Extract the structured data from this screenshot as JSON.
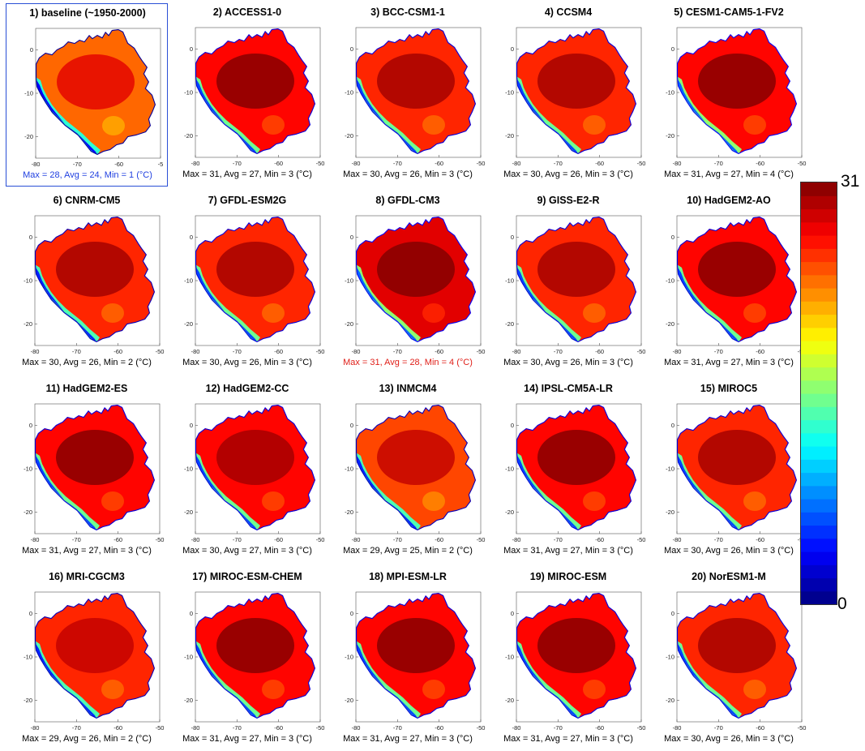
{
  "chart_data": {
    "type": "heatmap",
    "x_ticks": [
      "-80",
      "-70",
      "-60",
      "-50"
    ],
    "x_ticks_baseline_last": "-5",
    "y_ticks": [
      "0",
      "-10",
      "-20"
    ],
    "xlim": [
      -80,
      -50
    ],
    "ylim": [
      -25,
      5
    ],
    "colormap": "jet",
    "colorbar": {
      "min": 0,
      "max": 31,
      "min_label": "0",
      "max_label": "31"
    },
    "panels": [
      {
        "title": "1) baseline (~1950-2000)",
        "stats": "Max = 28, Avg = 24, Min = 1 (°C)",
        "max": 28,
        "avg": 24,
        "min": 1,
        "highlight": "blue",
        "stats_color": "#1f3fe0"
      },
      {
        "title": "2) ACCESS1-0",
        "stats": "Max = 31, Avg = 27, Min = 3 (°C)",
        "max": 31,
        "avg": 27,
        "min": 3
      },
      {
        "title": "3) BCC-CSM1-1",
        "stats": "Max = 30, Avg = 26, Min = 3 (°C)",
        "max": 30,
        "avg": 26,
        "min": 3
      },
      {
        "title": "4) CCSM4",
        "stats": "Max = 30, Avg = 26, Min = 3 (°C)",
        "max": 30,
        "avg": 26,
        "min": 3
      },
      {
        "title": "5) CESM1-CAM5-1-FV2",
        "stats": "Max = 31, Avg = 27, Min = 4 (°C)",
        "max": 31,
        "avg": 27,
        "min": 4
      },
      {
        "title": "6) CNRM-CM5",
        "stats": "Max = 30, Avg = 26, Min = 2 (°C)",
        "max": 30,
        "avg": 26,
        "min": 2
      },
      {
        "title": "7) GFDL-ESM2G",
        "stats": "Max = 30, Avg = 26, Min = 3 (°C)",
        "max": 30,
        "avg": 26,
        "min": 3
      },
      {
        "title": "8) GFDL-CM3",
        "stats": "Max = 31, Avg = 28, Min = 4 (°C)",
        "max": 31,
        "avg": 28,
        "min": 4,
        "stats_color": "#e0201a"
      },
      {
        "title": "9) GISS-E2-R",
        "stats": "Max = 30, Avg = 26, Min = 3 (°C)",
        "max": 30,
        "avg": 26,
        "min": 3
      },
      {
        "title": "10) HadGEM2-AO",
        "stats": "Max = 31, Avg = 27, Min = 3 (°C)",
        "max": 31,
        "avg": 27,
        "min": 3
      },
      {
        "title": "11) HadGEM2-ES",
        "stats": "Max = 31, Avg = 27, Min = 3 (°C)",
        "max": 31,
        "avg": 27,
        "min": 3
      },
      {
        "title": "12) HadGEM2-CC",
        "stats": "Max = 30, Avg = 27, Min = 3 (°C)",
        "max": 30,
        "avg": 27,
        "min": 3
      },
      {
        "title": "13) INMCM4",
        "stats": "Max = 29, Avg = 25, Min = 2 (°C)",
        "max": 29,
        "avg": 25,
        "min": 2
      },
      {
        "title": "14) IPSL-CM5A-LR",
        "stats": "Max = 31, Avg = 27, Min = 3 (°C)",
        "max": 31,
        "avg": 27,
        "min": 3
      },
      {
        "title": "15) MIROC5",
        "stats": "Max = 30, Avg = 26, Min = 3 (°C)",
        "max": 30,
        "avg": 26,
        "min": 3
      },
      {
        "title": "16) MRI-CGCM3",
        "stats": "Max = 29, Avg = 26, Min = 2 (°C)",
        "max": 29,
        "avg": 26,
        "min": 2
      },
      {
        "title": "17) MIROC-ESM-CHEM",
        "stats": "Max = 31, Avg = 27, Min = 3 (°C)",
        "max": 31,
        "avg": 27,
        "min": 3
      },
      {
        "title": "18) MPI-ESM-LR",
        "stats": "Max = 31, Avg = 27, Min = 3 (°C)",
        "max": 31,
        "avg": 27,
        "min": 3
      },
      {
        "title": "19) MIROC-ESM",
        "stats": "Max = 31, Avg = 27, Min = 3 (°C)",
        "max": 31,
        "avg": 27,
        "min": 3
      },
      {
        "title": "20) NorESM1-M",
        "stats": "Max = 30, Avg = 26, Min = 3 (°C)",
        "max": 30,
        "avg": 26,
        "min": 3
      }
    ]
  }
}
